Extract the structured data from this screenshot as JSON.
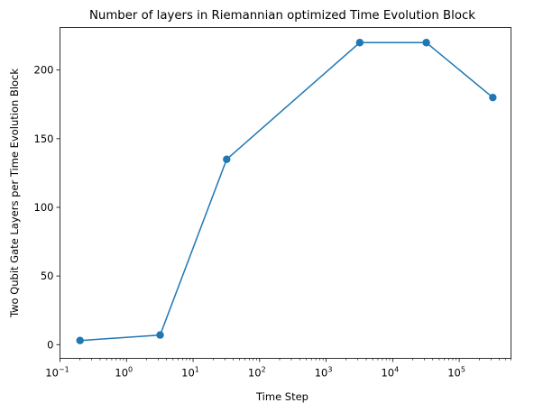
{
  "chart_data": {
    "type": "line",
    "title": "Number of layers in Riemannian optimized Time Evolution Block",
    "xlabel": "Time Step",
    "ylabel": "Two Qubit Gate Layers per Time Evolution Block",
    "xscale": "log",
    "xlim": [
      0.1,
      600000
    ],
    "ylim": [
      -10,
      231
    ],
    "x": [
      0.2,
      3.2,
      32,
      3200,
      32000,
      320000
    ],
    "y": [
      3,
      7,
      135,
      220,
      220,
      180
    ],
    "xticks": [
      {
        "value": 0.1,
        "base": "10",
        "exp": "−1"
      },
      {
        "value": 1,
        "base": "10",
        "exp": "0"
      },
      {
        "value": 10,
        "base": "10",
        "exp": "1"
      },
      {
        "value": 100,
        "base": "10",
        "exp": "2"
      },
      {
        "value": 1000,
        "base": "10",
        "exp": "3"
      },
      {
        "value": 10000,
        "base": "10",
        "exp": "4"
      },
      {
        "value": 100000,
        "base": "10",
        "exp": "5"
      }
    ],
    "yticks": [
      0,
      50,
      100,
      150,
      200
    ],
    "line_color": "#1f77b4",
    "marker": "circle",
    "grid": false
  }
}
